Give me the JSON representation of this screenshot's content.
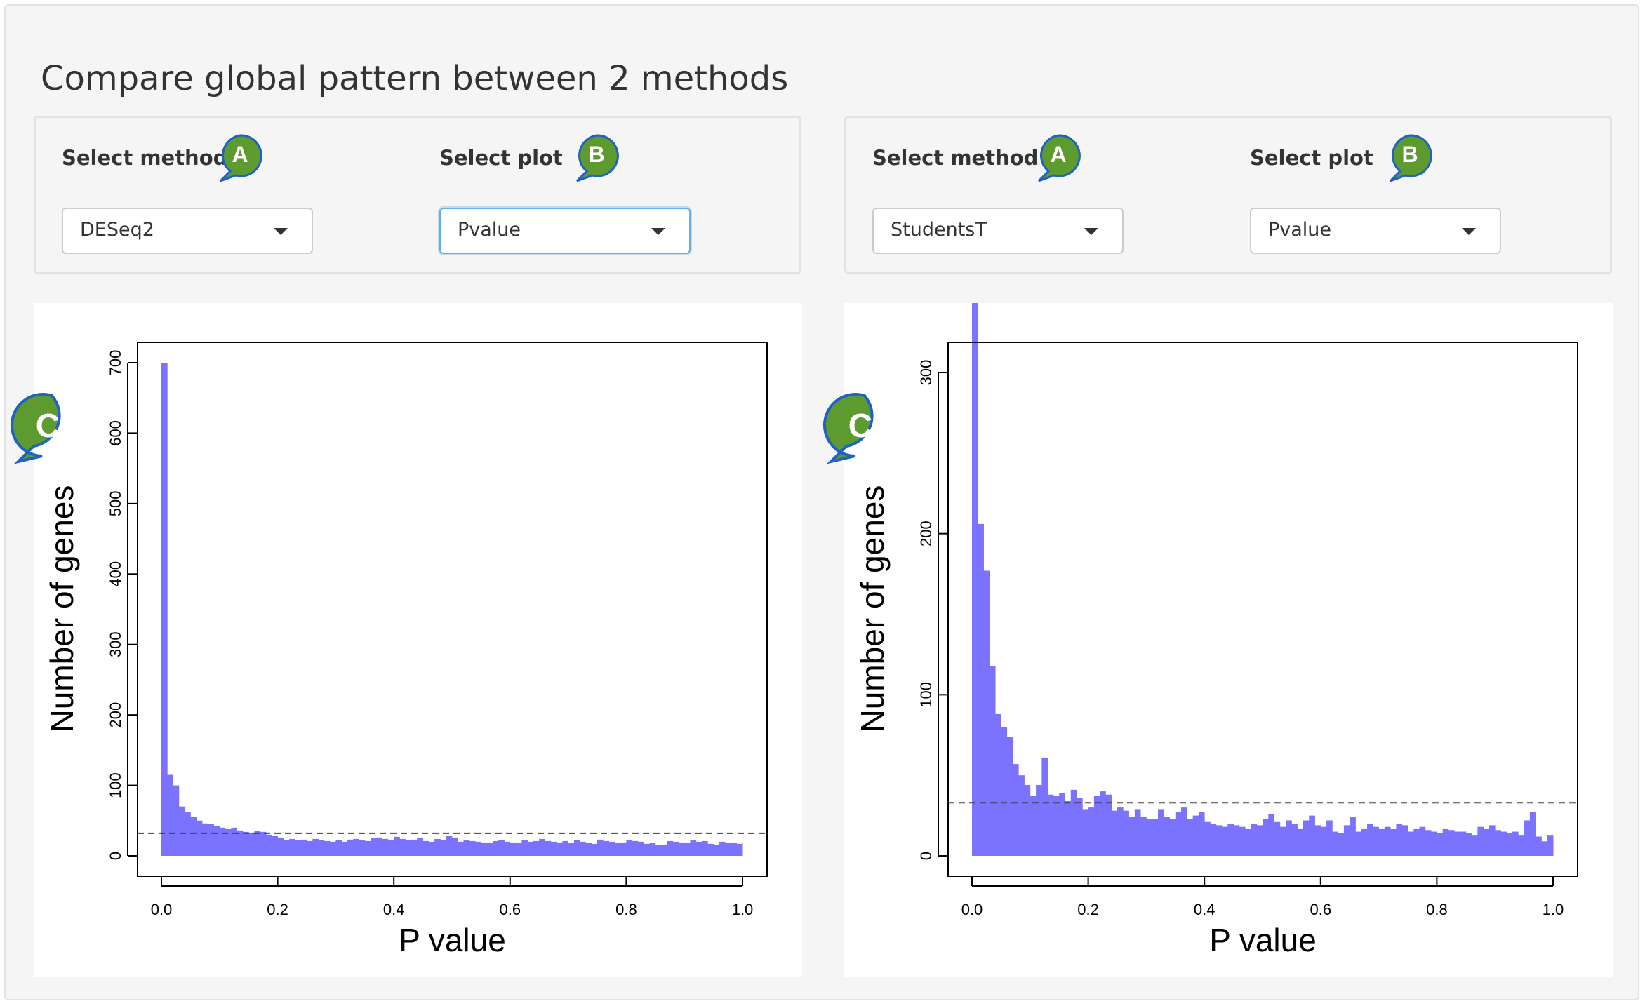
{
  "page": {
    "title": "Compare global pattern between 2 methods"
  },
  "panels": [
    {
      "method": {
        "label": "Select method",
        "value": "DESeq2",
        "badge": "A"
      },
      "plot": {
        "label": "Select plot",
        "value": "Pvalue",
        "badge": "B",
        "focused": true
      },
      "chart_badge": "C"
    },
    {
      "method": {
        "label": "Select method",
        "value": "StudentsT",
        "badge": "A"
      },
      "plot": {
        "label": "Select plot",
        "value": "Pvalue",
        "badge": "B",
        "focused": false
      },
      "chart_badge": "C"
    }
  ],
  "colors": {
    "bar": "#7b73ff",
    "badge": "#5e9b2e",
    "badge_border": "#1f62c4",
    "focus": "#66afe9"
  },
  "chart_data": [
    {
      "type": "bar",
      "xlabel": "P value",
      "ylabel": "Number of genes",
      "x_ticks": [
        "0.0",
        "0.2",
        "0.4",
        "0.6",
        "0.8",
        "1.0"
      ],
      "y_ticks": [
        "0",
        "100",
        "200",
        "300",
        "400",
        "500",
        "600",
        "700"
      ],
      "xlim": [
        0,
        1
      ],
      "ylim": [
        0,
        700
      ],
      "bin_width": 0.01,
      "reference_line": 32,
      "grid": false,
      "values": [
        700,
        115,
        100,
        70,
        62,
        55,
        50,
        46,
        45,
        42,
        40,
        38,
        40,
        36,
        34,
        33,
        35,
        34,
        30,
        28,
        26,
        22,
        24,
        22,
        23,
        21,
        24,
        22,
        21,
        20,
        22,
        20,
        23,
        24,
        22,
        21,
        25,
        26,
        24,
        22,
        27,
        24,
        22,
        23,
        26,
        21,
        20,
        24,
        22,
        28,
        25,
        20,
        22,
        21,
        20,
        19,
        18,
        21,
        22,
        20,
        19,
        18,
        22,
        20,
        21,
        24,
        21,
        20,
        19,
        21,
        18,
        22,
        20,
        19,
        17,
        23,
        21,
        20,
        18,
        19,
        22,
        21,
        20,
        17,
        18,
        15,
        16,
        21,
        20,
        19,
        18,
        22,
        20,
        21,
        17,
        16,
        20,
        18,
        19,
        17,
        18
      ]
    },
    {
      "type": "bar",
      "xlabel": "P value",
      "ylabel": "Number of genes",
      "x_ticks": [
        "0.0",
        "0.2",
        "0.4",
        "0.6",
        "0.8",
        "1.0"
      ],
      "y_ticks": [
        "0",
        "100",
        "200",
        "300"
      ],
      "xlim": [
        0,
        1
      ],
      "ylim": [
        0,
        380
      ],
      "bin_width": 0.01,
      "reference_line": 33,
      "grid": false,
      "values": [
        378,
        206,
        177,
        118,
        88,
        80,
        74,
        57,
        50,
        44,
        37,
        44,
        61,
        38,
        37,
        39,
        34,
        41,
        36,
        29,
        30,
        37,
        40,
        38,
        28,
        30,
        28,
        24,
        29,
        24,
        23,
        23,
        29,
        24,
        23,
        27,
        30,
        23,
        25,
        27,
        21,
        20,
        19,
        18,
        20,
        19,
        18,
        17,
        20,
        19,
        23,
        26,
        21,
        18,
        22,
        20,
        17,
        22,
        25,
        19,
        18,
        22,
        15,
        14,
        19,
        24,
        15,
        17,
        20,
        18,
        17,
        18,
        17,
        20,
        19,
        15,
        17,
        18,
        16,
        15,
        14,
        17,
        16,
        15,
        15,
        14,
        13,
        18,
        17,
        19,
        16,
        15,
        14,
        15,
        13,
        22,
        27,
        12,
        9,
        13,
        12,
        8
      ]
    }
  ]
}
